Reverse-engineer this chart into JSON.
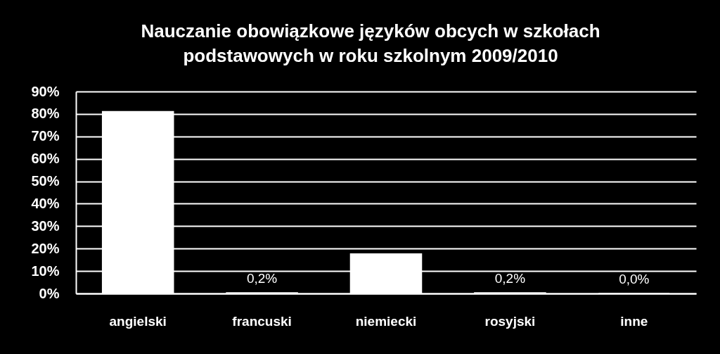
{
  "chart_data": {
    "type": "bar",
    "title": "Nauczanie obowiązkowe języków obcych w szkołach podstawowych w roku szkolnym 2009/2010",
    "categories": [
      "angielski",
      "francuski",
      "niemiecki",
      "rosyjski",
      "inne"
    ],
    "values": [
      81,
      0.2,
      17.6,
      0.2,
      0.0
    ],
    "value_labels": [
      null,
      "0,2%",
      null,
      "0,2%",
      "0,0%"
    ],
    "color": "#ffffff",
    "ylim": [
      0,
      90
    ],
    "yticks": [
      {
        "value": 0,
        "label": "0%"
      },
      {
        "value": 10,
        "label": "10%"
      },
      {
        "value": 20,
        "label": "20%"
      },
      {
        "value": 30,
        "label": "30%"
      },
      {
        "value": 40,
        "label": "40%"
      },
      {
        "value": 50,
        "label": "50%"
      },
      {
        "value": 60,
        "label": "60%"
      },
      {
        "value": 70,
        "label": "70%"
      },
      {
        "value": 80,
        "label": "80%"
      },
      {
        "value": 90,
        "label": "90%"
      }
    ],
    "grid": "y"
  }
}
